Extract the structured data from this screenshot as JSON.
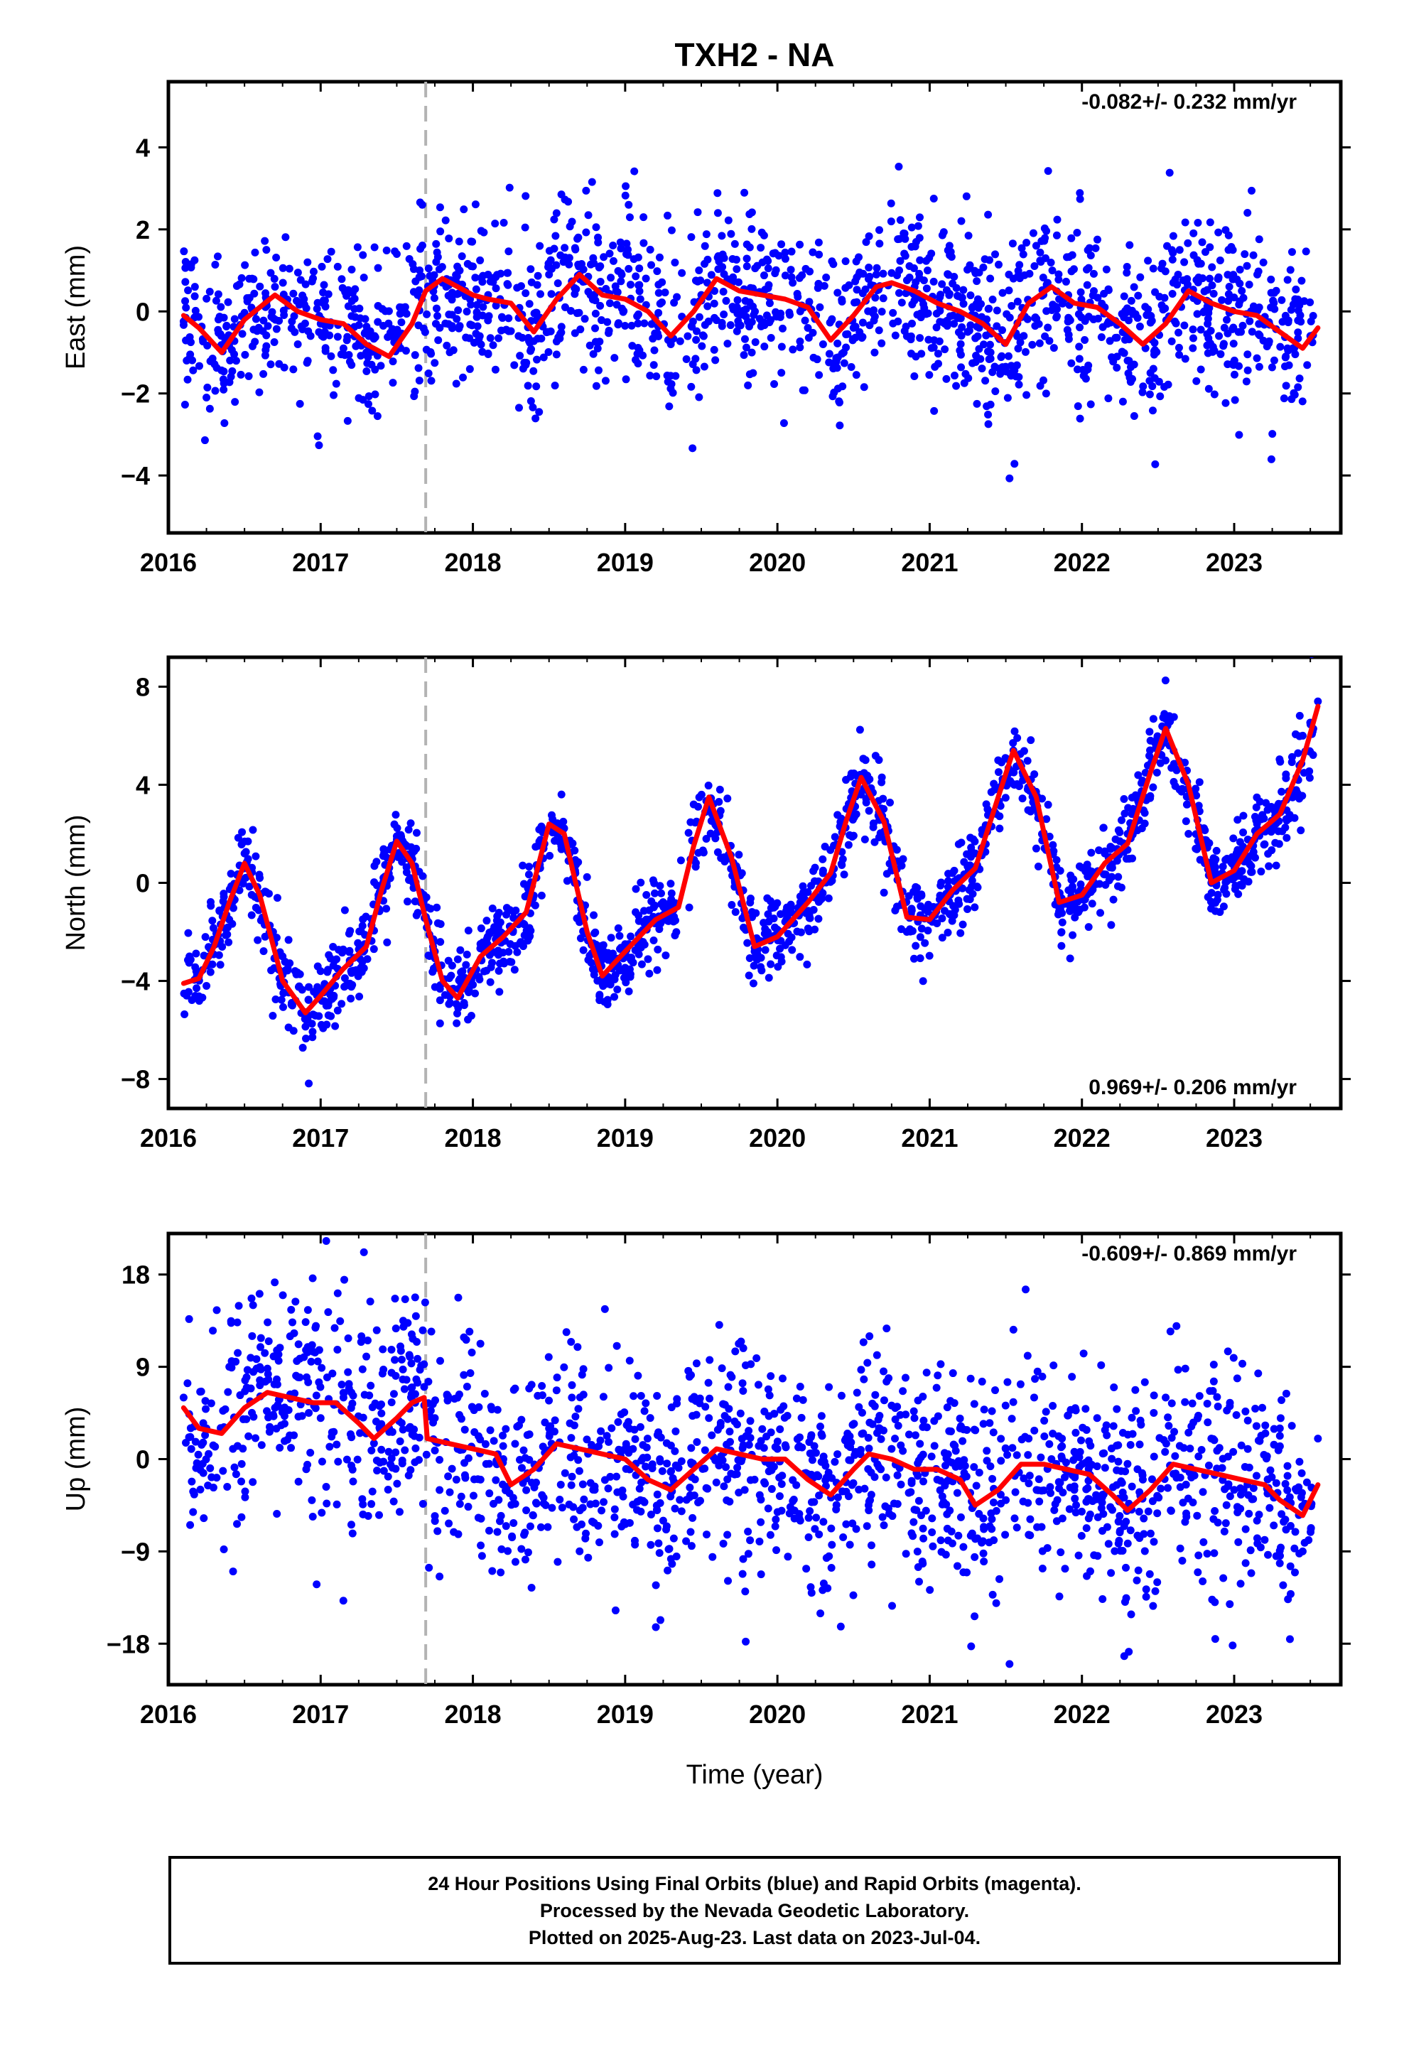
{
  "title": "TXH2 - NA",
  "footer": [
    "24 Hour Positions Using Final Orbits (blue) and Rapid Orbits (magenta).",
    "Processed by the Nevada Geodetic Laboratory.",
    "Plotted on 2025-Aug-23. Last data on 2023-Jul-04."
  ],
  "colors": {
    "points": "#0000ff",
    "model": "#ff0000",
    "dashed_line": "#b3b3b3"
  },
  "chart_data": [
    {
      "type": "scatter",
      "ylabel": "East (mm)",
      "xlabel": "",
      "xlim": [
        2016.0,
        2023.7
      ],
      "ylim": [
        -5.4,
        5.6
      ],
      "x_ticks": [
        2016,
        2017,
        2018,
        2019,
        2020,
        2021,
        2022,
        2023
      ],
      "y_ticks": [
        -4,
        -2,
        0,
        2,
        4
      ],
      "rate_label": "-0.082+/- 0.232 mm/yr",
      "rate_label_position": "top-right",
      "dashed_line_x": 2017.69,
      "series": [
        {
          "kind": "points",
          "x": [
            2016.12,
            2016.25,
            2016.4,
            2016.55,
            2016.7,
            2016.85,
            2017.0,
            2017.15,
            2017.3,
            2017.5,
            2017.65,
            2017.8,
            2017.95,
            2018.1,
            2018.3,
            2018.5,
            2018.7,
            2018.9,
            2019.1,
            2019.3,
            2019.5,
            2019.65,
            2019.8,
            2019.95,
            2020.15,
            2020.3,
            2020.5,
            2020.65,
            2020.8,
            2020.95,
            2021.1,
            2021.25,
            2021.4,
            2021.55,
            2021.7,
            2021.85,
            2022.0,
            2022.15,
            2022.3,
            2022.45,
            2022.6,
            2022.75,
            2022.9,
            2023.05,
            2023.2,
            2023.35,
            2023.5
          ],
          "y": [
            -1.2,
            -2.1,
            -0.6,
            0.8,
            0.6,
            -0.8,
            -0.3,
            -0.9,
            -1.0,
            1.4,
            1.0,
            0.7,
            0.5,
            0.4,
            -0.6,
            0.9,
            0.9,
            0.2,
            0.3,
            -0.8,
            0.4,
            1.3,
            1.1,
            0.2,
            0.0,
            -0.8,
            -0.4,
            0.9,
            1.0,
            0.3,
            -0.3,
            -0.5,
            -1.0,
            0.8,
            1.6,
            0.3,
            0.2,
            0.1,
            -1.2,
            -1.5,
            0.7,
            0.3,
            -0.6,
            0.5,
            -0.2,
            -0.9,
            -0.6
          ]
        },
        {
          "kind": "model",
          "x": [
            2016.1,
            2016.2,
            2016.35,
            2016.5,
            2016.7,
            2016.85,
            2017.0,
            2017.15,
            2017.3,
            2017.45,
            2017.6,
            2017.69,
            2017.8,
            2018.0,
            2018.1,
            2018.25,
            2018.4,
            2018.55,
            2018.7,
            2018.85,
            2019.0,
            2019.15,
            2019.3,
            2019.45,
            2019.6,
            2019.75,
            2019.9,
            2020.05,
            2020.2,
            2020.35,
            2020.5,
            2020.65,
            2020.75,
            2020.9,
            2021.05,
            2021.2,
            2021.35,
            2021.5,
            2021.65,
            2021.8,
            2021.95,
            2022.1,
            2022.25,
            2022.4,
            2022.55,
            2022.7,
            2022.85,
            2023.0,
            2023.15,
            2023.3,
            2023.45,
            2023.55
          ],
          "y": [
            -0.1,
            -0.4,
            -1.0,
            -0.2,
            0.4,
            0.0,
            -0.2,
            -0.3,
            -0.8,
            -1.1,
            -0.3,
            0.5,
            0.8,
            0.4,
            0.3,
            0.2,
            -0.5,
            0.3,
            0.9,
            0.4,
            0.3,
            0.0,
            -0.6,
            0.0,
            0.8,
            0.5,
            0.4,
            0.3,
            0.1,
            -0.7,
            -0.1,
            0.6,
            0.7,
            0.5,
            0.2,
            0.0,
            -0.3,
            -0.8,
            0.2,
            0.6,
            0.2,
            0.1,
            -0.3,
            -0.8,
            -0.3,
            0.5,
            0.2,
            0.0,
            -0.1,
            -0.5,
            -0.9,
            -0.4
          ]
        }
      ]
    },
    {
      "type": "scatter",
      "ylabel": "North (mm)",
      "xlabel": "",
      "xlim": [
        2016.0,
        2023.7
      ],
      "ylim": [
        -9.2,
        9.2
      ],
      "x_ticks": [
        2016,
        2017,
        2018,
        2019,
        2020,
        2021,
        2022,
        2023
      ],
      "y_ticks": [
        -8,
        -4,
        0,
        4,
        8
      ],
      "rate_label": "0.969+/- 0.206 mm/yr",
      "rate_label_position": "bottom-right",
      "dashed_line_x": 2017.69,
      "series": [
        {
          "kind": "points",
          "x": [
            2016.12,
            2016.25,
            2016.4,
            2016.5,
            2016.6,
            2016.75,
            2016.9,
            2017.05,
            2017.2,
            2017.35,
            2017.5,
            2017.6,
            2017.75,
            2017.85,
            2018.0,
            2018.15,
            2018.3,
            2018.45,
            2018.55,
            2018.7,
            2018.85,
            2019.0,
            2019.15,
            2019.3,
            2019.45,
            2019.55,
            2019.7,
            2019.85,
            2020.0,
            2020.15,
            2020.3,
            2020.45,
            2020.55,
            2020.7,
            2020.85,
            2021.0,
            2021.15,
            2021.3,
            2021.45,
            2021.55,
            2021.7,
            2021.85,
            2022.0,
            2022.15,
            2022.3,
            2022.45,
            2022.55,
            2022.7,
            2022.85,
            2023.0,
            2023.15,
            2023.3,
            2023.45,
            2023.55
          ],
          "y": [
            -4.6,
            -4.2,
            -1.5,
            1.2,
            0.2,
            -3.0,
            -5.5,
            -5.0,
            -3.6,
            -2.7,
            1.9,
            1.2,
            -2.8,
            -4.9,
            -3.8,
            -2.3,
            -1.6,
            2.3,
            2.0,
            -1.6,
            -3.9,
            -2.5,
            -1.5,
            -1.0,
            3.2,
            3.0,
            -0.9,
            -2.8,
            -2.0,
            -0.8,
            0.5,
            4.2,
            3.6,
            -0.4,
            -2.0,
            -1.0,
            0.4,
            1.2,
            5.0,
            5.4,
            1.4,
            -1.0,
            -0.3,
            1.2,
            2.0,
            5.8,
            6.2,
            2.0,
            0.0,
            1.0,
            2.4,
            3.2,
            6.0,
            7.4
          ]
        },
        {
          "kind": "model",
          "x": [
            2016.1,
            2016.2,
            2016.3,
            2016.4,
            2016.5,
            2016.6,
            2016.75,
            2016.9,
            2017.0,
            2017.15,
            2017.3,
            2017.4,
            2017.5,
            2017.6,
            2017.69,
            2017.8,
            2017.9,
            2018.05,
            2018.2,
            2018.35,
            2018.5,
            2018.6,
            2018.75,
            2018.85,
            2019.0,
            2019.2,
            2019.35,
            2019.45,
            2019.55,
            2019.7,
            2019.85,
            2020.0,
            2020.2,
            2020.35,
            2020.45,
            2020.55,
            2020.7,
            2020.85,
            2021.0,
            2021.15,
            2021.3,
            2021.45,
            2021.55,
            2021.7,
            2021.85,
            2022.0,
            2022.15,
            2022.3,
            2022.45,
            2022.55,
            2022.7,
            2022.85,
            2023.0,
            2023.15,
            2023.3,
            2023.45,
            2023.55
          ],
          "y": [
            -4.1,
            -3.9,
            -2.6,
            -0.8,
            0.8,
            -0.5,
            -4.0,
            -5.3,
            -4.6,
            -3.5,
            -2.6,
            -0.3,
            1.7,
            0.8,
            -1.5,
            -4.0,
            -4.7,
            -3.0,
            -2.2,
            -1.2,
            2.4,
            2.0,
            -2.0,
            -3.8,
            -2.8,
            -1.5,
            -1.0,
            1.5,
            3.5,
            1.0,
            -2.6,
            -2.2,
            -0.8,
            0.4,
            2.5,
            4.3,
            2.5,
            -1.4,
            -1.5,
            -0.3,
            0.6,
            3.5,
            5.4,
            3.5,
            -0.8,
            -0.5,
            0.8,
            1.6,
            4.5,
            6.3,
            4.0,
            0.0,
            0.5,
            2.0,
            2.8,
            5.0,
            7.2
          ]
        }
      ]
    },
    {
      "type": "scatter",
      "ylabel": "Up (mm)",
      "xlabel": "Time (year)",
      "xlim": [
        2016.0,
        2023.7
      ],
      "ylim": [
        -22,
        22
      ],
      "x_ticks": [
        2016,
        2017,
        2018,
        2019,
        2020,
        2021,
        2022,
        2023
      ],
      "y_ticks": [
        -18,
        -9,
        0,
        9,
        18
      ],
      "rate_label": "-0.609+/- 0.869 mm/yr",
      "rate_label_position": "top-right",
      "dashed_line_x": 2017.69,
      "series": [
        {
          "kind": "points",
          "x": [
            2016.1,
            2016.25,
            2016.4,
            2016.55,
            2016.7,
            2016.85,
            2017.0,
            2017.15,
            2017.3,
            2017.45,
            2017.6,
            2017.75,
            2017.9,
            2018.05,
            2018.2,
            2018.35,
            2018.5,
            2018.65,
            2018.8,
            2018.95,
            2019.1,
            2019.25,
            2019.4,
            2019.55,
            2019.7,
            2019.85,
            2020.0,
            2020.15,
            2020.3,
            2020.45,
            2020.6,
            2020.75,
            2020.9,
            2021.05,
            2021.2,
            2021.35,
            2021.5,
            2021.65,
            2021.8,
            2021.95,
            2022.1,
            2022.25,
            2022.4,
            2022.55,
            2022.7,
            2022.85,
            2023.0,
            2023.15,
            2023.3,
            2023.45,
            2023.55
          ],
          "y": [
            6,
            3,
            9,
            12,
            5,
            8,
            4,
            6,
            10,
            3,
            7,
            4,
            1,
            -2,
            0,
            -5,
            3,
            6,
            -3,
            0,
            -4,
            -6,
            -8,
            4,
            8,
            -2,
            1,
            -6,
            -3,
            2,
            -5,
            1,
            4,
            -2,
            3,
            -8,
            -4,
            2,
            0,
            -3,
            4,
            -7,
            -2,
            6,
            -1,
            2,
            -3,
            -6,
            3,
            -9,
            2
          ]
        },
        {
          "kind": "model",
          "x": [
            2016.1,
            2016.2,
            2016.35,
            2016.5,
            2016.65,
            2016.8,
            2016.95,
            2017.1,
            2017.25,
            2017.35,
            2017.5,
            2017.6,
            2017.68,
            2017.7,
            2017.85,
            2018.0,
            2018.15,
            2018.25,
            2018.4,
            2018.55,
            2018.7,
            2018.85,
            2019.0,
            2019.15,
            2019.3,
            2019.45,
            2019.6,
            2019.75,
            2019.9,
            2020.05,
            2020.2,
            2020.35,
            2020.5,
            2020.6,
            2020.75,
            2020.9,
            2021.05,
            2021.2,
            2021.3,
            2021.45,
            2021.6,
            2021.75,
            2021.9,
            2022.05,
            2022.2,
            2022.3,
            2022.45,
            2022.6,
            2022.75,
            2022.9,
            2023.05,
            2023.2,
            2023.3,
            2023.45,
            2023.55
          ],
          "y": [
            5,
            3,
            2.5,
            5,
            6.5,
            6,
            5.5,
            5.5,
            3.5,
            2,
            4,
            5.5,
            6,
            2,
            1.5,
            1,
            0.5,
            -2.5,
            -1,
            1.5,
            1,
            0.5,
            0,
            -2,
            -3,
            -1,
            1,
            0.5,
            0,
            0,
            -2,
            -3.5,
            -1,
            0.5,
            0,
            -1,
            -1,
            -2,
            -4.5,
            -3,
            -0.5,
            -0.5,
            -1,
            -1.5,
            -3.5,
            -5,
            -3,
            -0.5,
            -1,
            -1.5,
            -2,
            -2.5,
            -4,
            -5.5,
            -2.5
          ]
        }
      ]
    }
  ]
}
